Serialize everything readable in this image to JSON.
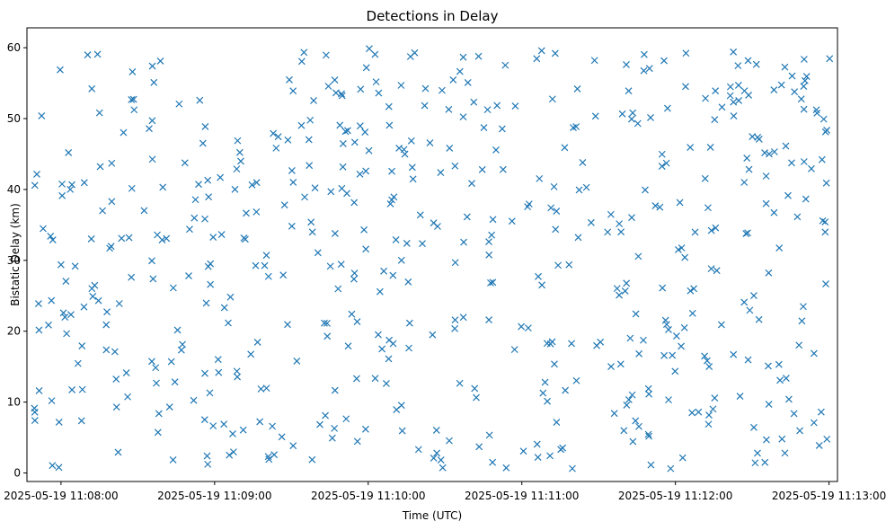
{
  "chart_data": {
    "type": "scatter",
    "title": "Detections in Delay",
    "xlabel": "Time (UTC)",
    "ylabel": "Bistatic Delay (km)",
    "x_tick_labels": [
      "2025-05-19 11:08:00",
      "2025-05-19 11:09:00",
      "2025-05-19 11:10:00",
      "2025-05-19 11:11:00",
      "2025-05-19 11:12:00",
      "2025-05-19 11:13:00"
    ],
    "x_ticks_seconds_after_1107": [
      60,
      120,
      180,
      240,
      300,
      360
    ],
    "xlim_seconds_after_1107": [
      46.7,
      363.3
    ],
    "y_ticks": [
      0,
      10,
      20,
      30,
      40,
      50,
      60
    ],
    "ylim": [
      -1.2,
      62.8
    ],
    "grid": false,
    "marker": "x",
    "color": "#1f77b4",
    "series_seed": 20250519,
    "series_count": 560,
    "series_time_range_seconds_after_1107": [
      49.5,
      360.5
    ],
    "series_delay_range_km": [
      0.5,
      60.0
    ]
  }
}
